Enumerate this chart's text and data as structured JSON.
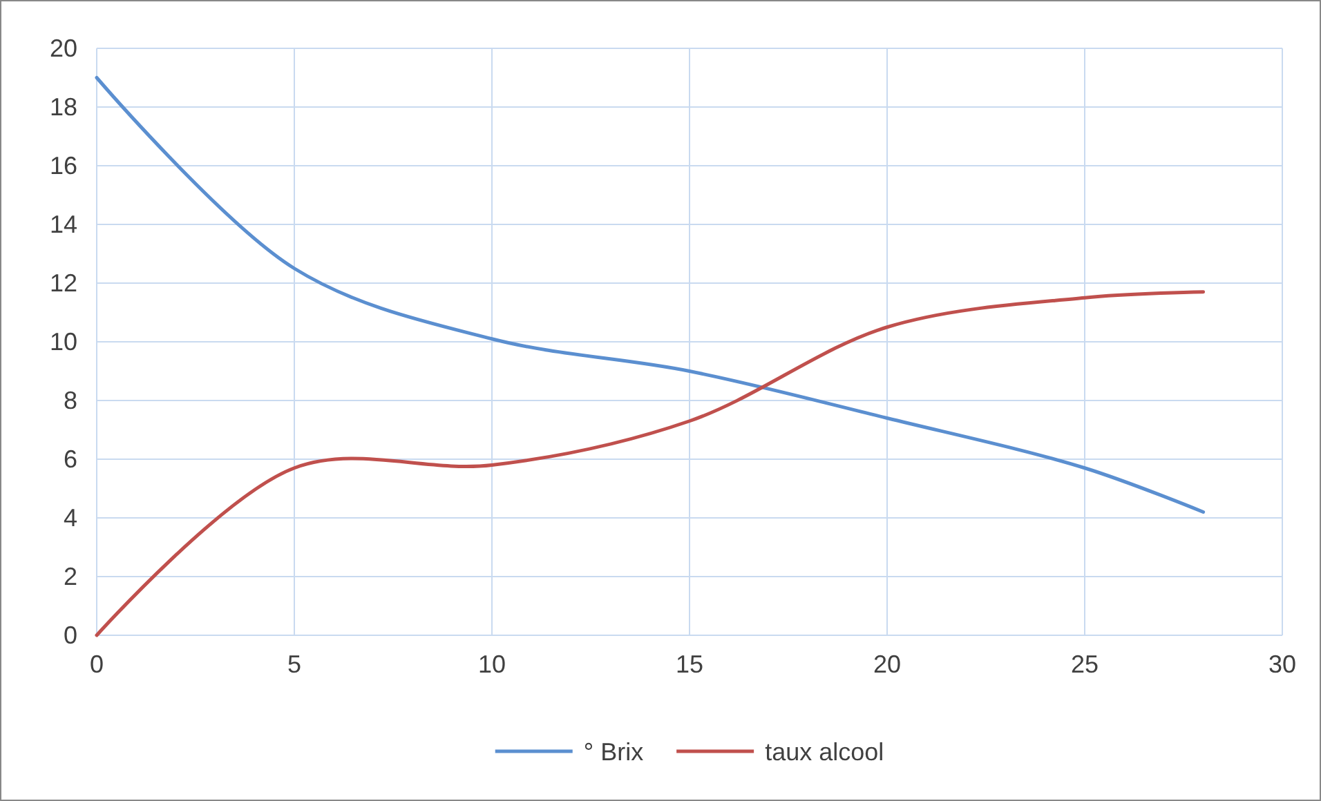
{
  "chart_data": {
    "type": "line",
    "x": [
      0,
      5,
      10,
      15,
      20,
      25,
      28
    ],
    "series": [
      {
        "name": "° Brix",
        "color": "#5b8fd0",
        "values": [
          19,
          12.5,
          10.1,
          9.0,
          7.4,
          5.7,
          4.2
        ]
      },
      {
        "name": "taux alcool",
        "color": "#c0504d",
        "values": [
          0,
          5.7,
          5.8,
          7.3,
          10.5,
          11.5,
          11.7
        ]
      }
    ],
    "xlim": [
      0,
      30
    ],
    "xticks": [
      0,
      5,
      10,
      15,
      20,
      25,
      30
    ],
    "ylim": [
      0,
      20
    ],
    "yticks": [
      0,
      2,
      4,
      6,
      8,
      10,
      12,
      14,
      16,
      18,
      20
    ],
    "grid": true,
    "legend": "bottom",
    "marker": "none",
    "line_style": "solid"
  }
}
